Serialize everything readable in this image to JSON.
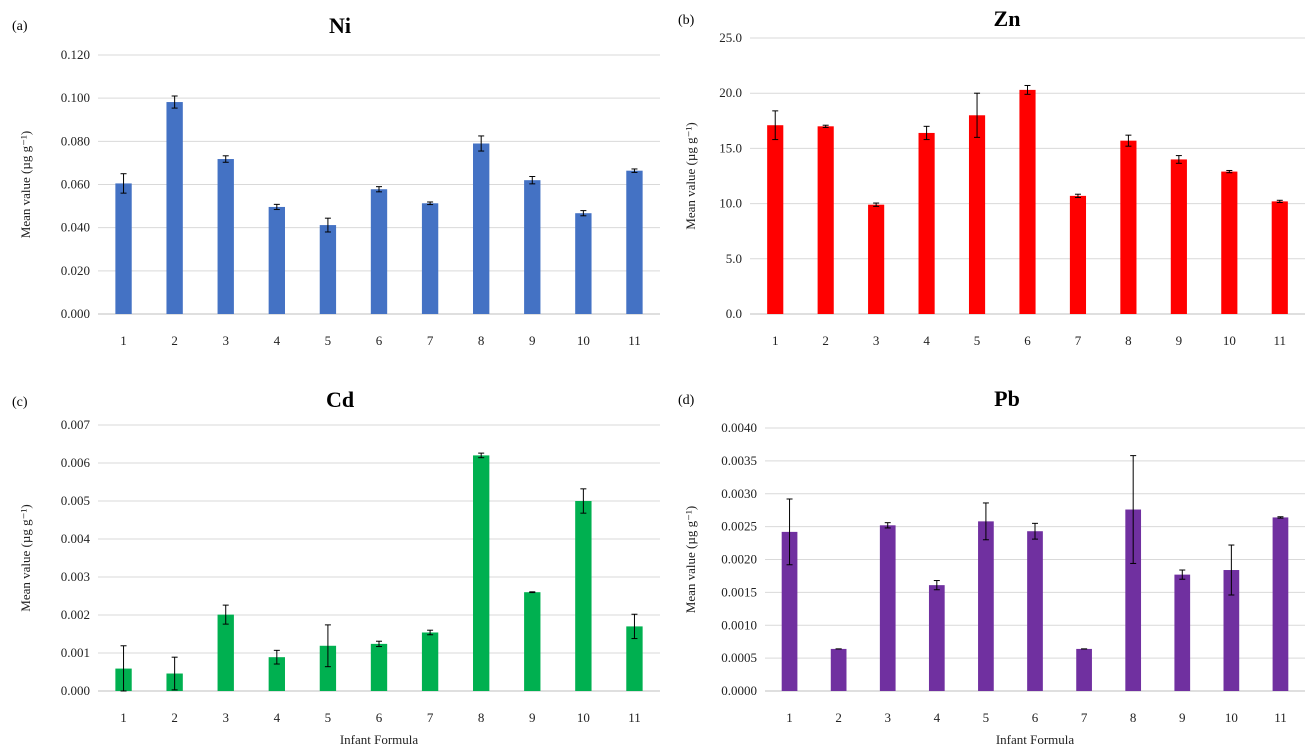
{
  "chart_data": [
    {
      "panel": "(a)",
      "type": "bar",
      "title": "Ni",
      "ylabel": "Mean value (µg g⁻¹)",
      "xlabel": "",
      "categories": [
        "1",
        "2",
        "3",
        "4",
        "5",
        "6",
        "7",
        "8",
        "9",
        "10",
        "11"
      ],
      "values": [
        0.0605,
        0.0982,
        0.0718,
        0.0496,
        0.0412,
        0.0578,
        0.0513,
        0.079,
        0.062,
        0.0467,
        0.0664
      ],
      "errors": [
        0.0045,
        0.0028,
        0.0015,
        0.0012,
        0.0032,
        0.0012,
        0.0006,
        0.0035,
        0.0017,
        0.0012,
        0.0008
      ],
      "ylim": [
        0,
        0.12
      ],
      "yticks": [
        "0.000",
        "0.020",
        "0.040",
        "0.060",
        "0.080",
        "0.100",
        "0.120"
      ],
      "color": "#4472C4",
      "grid": true
    },
    {
      "panel": "(b)",
      "type": "bar",
      "title": "Zn",
      "ylabel": "Mean value (µg g⁻¹)",
      "xlabel": "",
      "categories": [
        "1",
        "2",
        "3",
        "4",
        "5",
        "6",
        "7",
        "8",
        "9",
        "10",
        "11"
      ],
      "values": [
        17.1,
        17.0,
        9.9,
        16.4,
        18.0,
        20.3,
        10.7,
        15.7,
        14.0,
        12.9,
        10.2
      ],
      "errors": [
        1.3,
        0.1,
        0.15,
        0.6,
        2.0,
        0.4,
        0.15,
        0.5,
        0.35,
        0.1,
        0.1
      ],
      "ylim": [
        0,
        25
      ],
      "yticks": [
        "0.0",
        "5.0",
        "10.0",
        "15.0",
        "20.0",
        "25.0"
      ],
      "color": "#FF0000",
      "grid": true
    },
    {
      "panel": "(c)",
      "type": "bar",
      "title": "Cd",
      "ylabel": "Mean value (µg g⁻¹)",
      "xlabel": "Infant Formula",
      "categories": [
        "1",
        "2",
        "3",
        "4",
        "5",
        "6",
        "7",
        "8",
        "9",
        "10",
        "11"
      ],
      "values": [
        0.00059,
        0.00046,
        0.00201,
        0.00089,
        0.00119,
        0.00124,
        0.00154,
        0.0062,
        0.0026,
        0.005,
        0.0017
      ],
      "errors": [
        0.0006,
        0.00043,
        0.00025,
        0.00018,
        0.00055,
        7e-05,
        6e-05,
        6e-05,
        1e-05,
        0.00032,
        0.00032
      ],
      "ylim": [
        0,
        0.007
      ],
      "yticks": [
        "0.000",
        "0.001",
        "0.002",
        "0.003",
        "0.004",
        "0.005",
        "0.006",
        "0.007"
      ],
      "color": "#00B050",
      "grid": true
    },
    {
      "panel": "(d)",
      "type": "bar",
      "title": "Pb",
      "ylabel": "Mean value (µg g⁻¹)",
      "xlabel": "Infant Formula",
      "categories": [
        "1",
        "2",
        "3",
        "4",
        "5",
        "6",
        "7",
        "8",
        "9",
        "10",
        "11"
      ],
      "values": [
        0.00242,
        0.00064,
        0.00252,
        0.00161,
        0.00258,
        0.00243,
        0.00064,
        0.00276,
        0.00177,
        0.00184,
        0.00264
      ],
      "errors": [
        0.0005,
        0.0,
        4e-05,
        7e-05,
        0.00028,
        0.00012,
        0.0,
        0.00082,
        7e-05,
        0.00038,
        1e-05
      ],
      "ylim": [
        0,
        0.004
      ],
      "yticks": [
        "0.0000",
        "0.0005",
        "0.0010",
        "0.0015",
        "0.0020",
        "0.0025",
        "0.0030",
        "0.0035",
        "0.0040"
      ],
      "color": "#7030A0",
      "grid": true
    }
  ]
}
